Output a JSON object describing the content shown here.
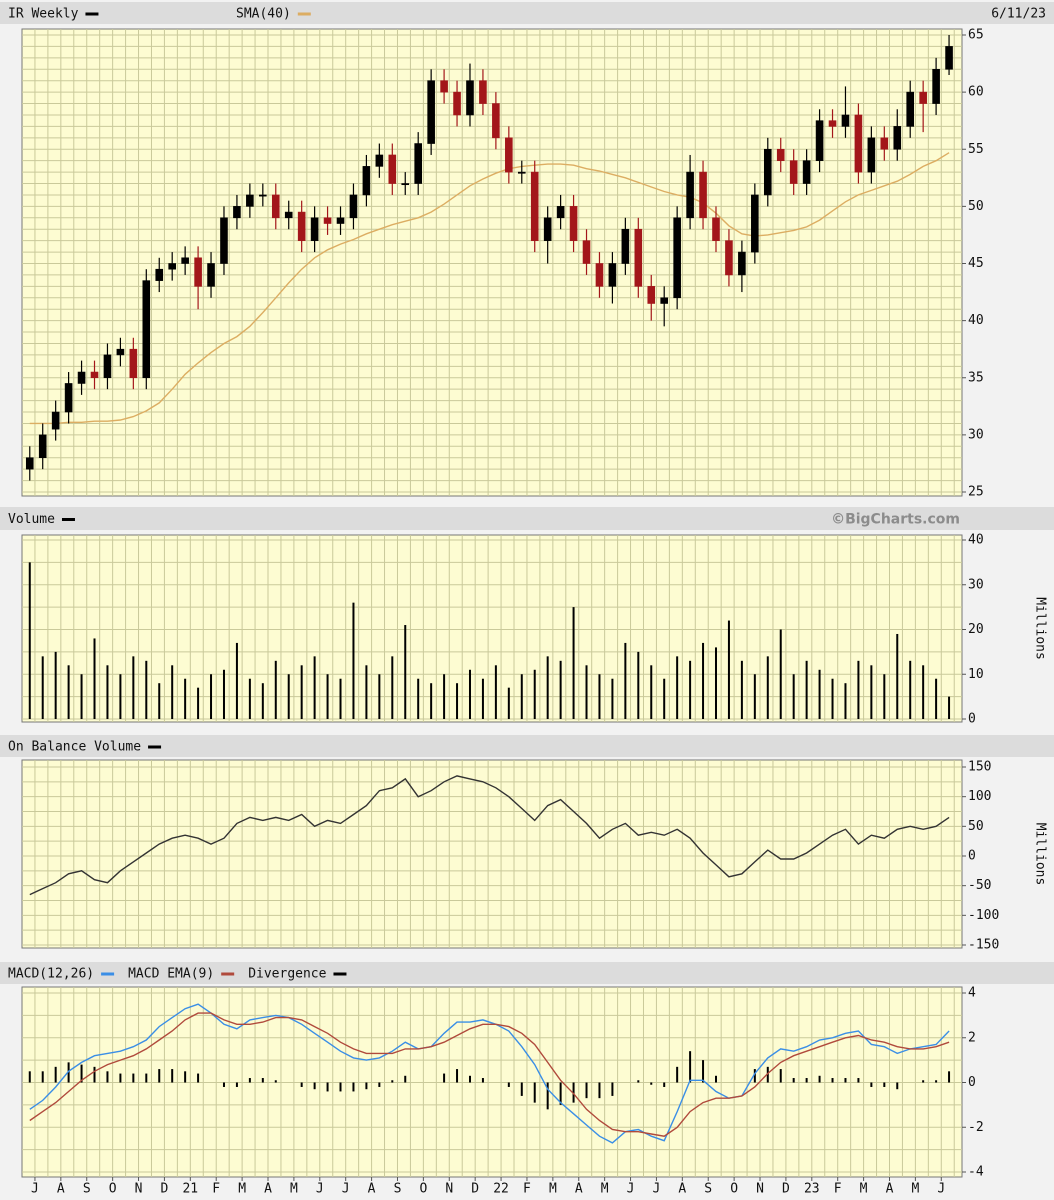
{
  "chart_data": [
    {
      "type": "candlestick",
      "title": "IR Weekly",
      "date": "6/11/23",
      "up_color": "#000000",
      "down_color": "#a3161a",
      "x": [
        0.3,
        0.8,
        1.3,
        1.8,
        2.3,
        2.8,
        3.3,
        3.8,
        4.3,
        4.8,
        5.3,
        5.8,
        6.3,
        6.8,
        7.3,
        7.8,
        8.3,
        8.8,
        9.3,
        9.8,
        10.3,
        10.8,
        11.3,
        11.8,
        12.3,
        12.8,
        13.3,
        13.8,
        14.3,
        14.8,
        15.3,
        15.8,
        16.3,
        16.8,
        17.3,
        17.8,
        18.3,
        18.8,
        19.3,
        19.8,
        20.3,
        20.8,
        21.3,
        21.8,
        22.3,
        22.8,
        23.3,
        23.8,
        24.3,
        24.8,
        25.3,
        25.8,
        26.3,
        26.8,
        27.3,
        27.8,
        28.3,
        28.8,
        29.3,
        29.8,
        30.3,
        30.8,
        31.3,
        31.8,
        32.3,
        32.8,
        33.3,
        33.8,
        34.3,
        34.8,
        35.3,
        35.8
      ],
      "open": [
        27,
        28,
        30.5,
        32,
        34.5,
        35.5,
        35,
        37,
        37.5,
        35,
        43.5,
        44.5,
        45,
        45.5,
        43,
        45,
        49,
        50,
        51,
        51,
        49,
        49.5,
        47,
        49,
        48.5,
        49,
        51,
        53.5,
        54.5,
        52,
        52,
        55.5,
        61,
        60,
        58,
        61,
        59,
        56,
        53,
        53,
        47,
        49,
        50,
        47,
        45,
        43,
        45,
        48,
        43,
        41.5,
        42,
        49,
        53,
        49,
        47,
        44,
        46,
        51,
        55,
        54,
        52,
        54,
        57.5,
        57,
        58,
        53,
        56,
        55,
        57,
        60,
        59,
        62
      ],
      "high": [
        29,
        31,
        33,
        35.5,
        36.5,
        36.5,
        38,
        38.5,
        38.5,
        44.5,
        45.5,
        46,
        46.5,
        46.5,
        46,
        50,
        51,
        52,
        52,
        52,
        50.5,
        50.5,
        50,
        50,
        50,
        52,
        54.5,
        55.5,
        55.5,
        53,
        56.5,
        62,
        62,
        61,
        62.5,
        62,
        60,
        57,
        54,
        54,
        50,
        51,
        51,
        48,
        46,
        46,
        49,
        49,
        44,
        43,
        50,
        54.5,
        54,
        50,
        48,
        47,
        52,
        56,
        56,
        55,
        55,
        58.5,
        58.5,
        60.5,
        59,
        57,
        57,
        58.5,
        61,
        61,
        63,
        65
      ],
      "low": [
        26,
        27,
        29.5,
        31,
        33.5,
        34,
        34,
        36,
        34,
        34,
        42.5,
        43.5,
        44,
        41,
        42,
        44,
        48,
        49,
        50,
        48,
        48,
        46,
        46,
        47.5,
        47.5,
        48,
        50,
        52.5,
        51,
        51,
        51,
        54.5,
        59,
        57,
        57,
        58,
        55,
        52,
        52,
        46,
        45,
        48,
        46,
        44,
        42,
        41.5,
        44,
        42,
        40,
        39.5,
        41,
        48,
        48,
        46,
        43,
        42.5,
        45,
        50,
        53,
        51,
        51,
        53,
        56,
        56,
        52,
        52,
        54,
        54,
        56,
        56.5,
        58,
        61.5
      ],
      "close": [
        28,
        30,
        32,
        34.5,
        35.5,
        35,
        37,
        37.5,
        35,
        43.5,
        44.5,
        45,
        45.5,
        43,
        45,
        49,
        50,
        51,
        51,
        49,
        49.5,
        47,
        49,
        48.5,
        49,
        51,
        53.5,
        54.5,
        52,
        52,
        55.5,
        61,
        60,
        58,
        61,
        59,
        56,
        53,
        53,
        47,
        49,
        50,
        47,
        45,
        43,
        45,
        48,
        43,
        41.5,
        42,
        49,
        53,
        49,
        47,
        44,
        46,
        51,
        55,
        54,
        52,
        54,
        57.5,
        57,
        58,
        53,
        56,
        55,
        57,
        60,
        59,
        62,
        64
      ],
      "series": [
        {
          "name": "SMA(40)",
          "color": "#dcad62",
          "values": [
            31,
            31,
            31,
            31.1,
            31.1,
            31.2,
            31.2,
            31.3,
            31.6,
            32.1,
            32.8,
            34,
            35.3,
            36.3,
            37.2,
            38,
            38.6,
            39.5,
            40.7,
            42,
            43.3,
            44.5,
            45.5,
            46.2,
            46.7,
            47.1,
            47.6,
            48,
            48.4,
            48.7,
            49,
            49.5,
            50.2,
            51,
            51.8,
            52.4,
            52.9,
            53.3,
            53.5,
            53.6,
            53.7,
            53.7,
            53.6,
            53.3,
            53.1,
            52.8,
            52.5,
            52.1,
            51.7,
            51.3,
            51,
            50.8,
            50.3,
            49.4,
            48.3,
            47.6,
            47.4,
            47.5,
            47.7,
            47.9,
            48.2,
            48.8,
            49.6,
            50.4,
            51,
            51.4,
            51.8,
            52.2,
            52.8,
            53.5,
            54,
            54.7
          ]
        }
      ],
      "xlim": [
        0,
        36.3
      ],
      "ylim": [
        25,
        65
      ],
      "yticks": [
        25,
        30,
        35,
        40,
        45,
        50,
        55,
        60,
        65
      ],
      "grid": true
    },
    {
      "type": "bar",
      "title": "Volume",
      "source": "©BigCharts.com",
      "y_label": "Millions",
      "color": "#000000",
      "x": [
        0.3,
        0.8,
        1.3,
        1.8,
        2.3,
        2.8,
        3.3,
        3.8,
        4.3,
        4.8,
        5.3,
        5.8,
        6.3,
        6.8,
        7.3,
        7.8,
        8.3,
        8.8,
        9.3,
        9.8,
        10.3,
        10.8,
        11.3,
        11.8,
        12.3,
        12.8,
        13.3,
        13.8,
        14.3,
        14.8,
        15.3,
        15.8,
        16.3,
        16.8,
        17.3,
        17.8,
        18.3,
        18.8,
        19.3,
        19.8,
        20.3,
        20.8,
        21.3,
        21.8,
        22.3,
        22.8,
        23.3,
        23.8,
        24.3,
        24.8,
        25.3,
        25.8,
        26.3,
        26.8,
        27.3,
        27.8,
        28.3,
        28.8,
        29.3,
        29.8,
        30.3,
        30.8,
        31.3,
        31.8,
        32.3,
        32.8,
        33.3,
        33.8,
        34.3,
        34.8,
        35.3,
        35.8
      ],
      "values": [
        35,
        14,
        15,
        12,
        10,
        18,
        12,
        10,
        14,
        13,
        8,
        12,
        9,
        7,
        10,
        11,
        17,
        9,
        8,
        13,
        10,
        12,
        14,
        10,
        9,
        26,
        12,
        10,
        14,
        21,
        9,
        8,
        10,
        8,
        11,
        9,
        12,
        7,
        10,
        11,
        14,
        13,
        25,
        12,
        10,
        9,
        17,
        15,
        12,
        9,
        14,
        13,
        17,
        16,
        22,
        13,
        10,
        14,
        20,
        10,
        13,
        11,
        9,
        8,
        13,
        12,
        10,
        19,
        13,
        12,
        9,
        5
      ],
      "xlim": [
        0,
        36.3
      ],
      "ylim": [
        0,
        40
      ],
      "yticks": [
        0,
        10,
        20,
        30,
        40
      ],
      "grid": true
    },
    {
      "type": "line",
      "title": "On Balance Volume",
      "y_label": "Millions",
      "color": "#333333",
      "x": [
        0.3,
        0.8,
        1.3,
        1.8,
        2.3,
        2.8,
        3.3,
        3.8,
        4.3,
        4.8,
        5.3,
        5.8,
        6.3,
        6.8,
        7.3,
        7.8,
        8.3,
        8.8,
        9.3,
        9.8,
        10.3,
        10.8,
        11.3,
        11.8,
        12.3,
        12.8,
        13.3,
        13.8,
        14.3,
        14.8,
        15.3,
        15.8,
        16.3,
        16.8,
        17.3,
        17.8,
        18.3,
        18.8,
        19.3,
        19.8,
        20.3,
        20.8,
        21.3,
        21.8,
        22.3,
        22.8,
        23.3,
        23.8,
        24.3,
        24.8,
        25.3,
        25.8,
        26.3,
        26.8,
        27.3,
        27.8,
        28.3,
        28.8,
        29.3,
        29.8,
        30.3,
        30.8,
        31.3,
        31.8,
        32.3,
        32.8,
        33.3,
        33.8,
        34.3,
        34.8,
        35.3,
        35.8
      ],
      "values": [
        -65,
        -55,
        -45,
        -30,
        -25,
        -40,
        -45,
        -25,
        -10,
        5,
        20,
        30,
        35,
        30,
        20,
        30,
        55,
        65,
        60,
        65,
        60,
        70,
        50,
        60,
        55,
        70,
        85,
        110,
        115,
        130,
        100,
        110,
        125,
        135,
        130,
        125,
        115,
        100,
        80,
        60,
        85,
        95,
        75,
        55,
        30,
        45,
        55,
        35,
        40,
        35,
        45,
        30,
        5,
        -15,
        -35,
        -30,
        -10,
        10,
        -5,
        -5,
        5,
        20,
        35,
        45,
        20,
        35,
        30,
        45,
        50,
        45,
        50,
        65
      ],
      "xlim": [
        0,
        36.3
      ],
      "ylim": [
        -150,
        150
      ],
      "yticks": [
        -150,
        -100,
        -50,
        0,
        50,
        100,
        150
      ],
      "grid": true
    },
    {
      "type": "macd",
      "x": [
        0.3,
        0.8,
        1.3,
        1.8,
        2.3,
        2.8,
        3.3,
        3.8,
        4.3,
        4.8,
        5.3,
        5.8,
        6.3,
        6.8,
        7.3,
        7.8,
        8.3,
        8.8,
        9.3,
        9.8,
        10.3,
        10.8,
        11.3,
        11.8,
        12.3,
        12.8,
        13.3,
        13.8,
        14.3,
        14.8,
        15.3,
        15.8,
        16.3,
        16.8,
        17.3,
        17.8,
        18.3,
        18.8,
        19.3,
        19.8,
        20.3,
        20.8,
        21.3,
        21.8,
        22.3,
        22.8,
        23.3,
        23.8,
        24.3,
        24.8,
        25.3,
        25.8,
        26.3,
        26.8,
        27.3,
        27.8,
        28.3,
        28.8,
        29.3,
        29.8,
        30.3,
        30.8,
        31.3,
        31.8,
        32.3,
        32.8,
        33.3,
        33.8,
        34.3,
        34.8,
        35.3,
        35.8
      ],
      "series": [
        {
          "name": "MACD(12,26)",
          "color": "#3a8ee6",
          "type": "line",
          "values": [
            -1.2,
            -0.8,
            -0.2,
            0.5,
            0.9,
            1.2,
            1.3,
            1.4,
            1.6,
            1.9,
            2.5,
            2.9,
            3.3,
            3.5,
            3.1,
            2.6,
            2.4,
            2.8,
            2.9,
            3.0,
            2.9,
            2.6,
            2.2,
            1.8,
            1.4,
            1.1,
            1.0,
            1.1,
            1.4,
            1.8,
            1.5,
            1.6,
            2.2,
            2.7,
            2.7,
            2.8,
            2.6,
            2.3,
            1.6,
            0.8,
            -0.3,
            -0.9,
            -1.4,
            -1.9,
            -2.4,
            -2.7,
            -2.2,
            -2.1,
            -2.4,
            -2.6,
            -1.3,
            0.1,
            0.1,
            -0.4,
            -0.7,
            -0.6,
            0.4,
            1.1,
            1.5,
            1.4,
            1.6,
            1.9,
            2.0,
            2.2,
            2.3,
            1.7,
            1.6,
            1.3,
            1.5,
            1.6,
            1.7,
            2.3
          ]
        },
        {
          "name": "MACD EMA(9)",
          "color": "#b04a3c",
          "type": "line",
          "values": [
            -1.7,
            -1.3,
            -0.9,
            -0.4,
            0.1,
            0.5,
            0.8,
            1.0,
            1.2,
            1.5,
            1.9,
            2.3,
            2.8,
            3.1,
            3.1,
            2.8,
            2.6,
            2.6,
            2.7,
            2.9,
            2.9,
            2.8,
            2.5,
            2.2,
            1.8,
            1.5,
            1.3,
            1.3,
            1.3,
            1.5,
            1.5,
            1.6,
            1.8,
            2.1,
            2.4,
            2.6,
            2.6,
            2.5,
            2.2,
            1.7,
            0.9,
            0.1,
            -0.5,
            -1.2,
            -1.7,
            -2.1,
            -2.2,
            -2.2,
            -2.3,
            -2.4,
            -2.0,
            -1.3,
            -0.9,
            -0.7,
            -0.7,
            -0.6,
            -0.2,
            0.4,
            0.9,
            1.2,
            1.4,
            1.6,
            1.8,
            2.0,
            2.1,
            1.9,
            1.8,
            1.6,
            1.5,
            1.5,
            1.6,
            1.8
          ]
        },
        {
          "name": "Divergence",
          "color": "#000000",
          "type": "bar",
          "values": [
            0.5,
            0.5,
            0.7,
            0.9,
            0.8,
            0.7,
            0.5,
            0.4,
            0.4,
            0.4,
            0.6,
            0.6,
            0.5,
            0.4,
            0,
            -0.2,
            -0.2,
            0.2,
            0.2,
            0.1,
            0,
            -0.2,
            -0.3,
            -0.4,
            -0.4,
            -0.4,
            -0.3,
            -0.2,
            0.1,
            0.3,
            0,
            0,
            0.4,
            0.6,
            0.3,
            0.2,
            0,
            -0.2,
            -0.6,
            -0.9,
            -1.2,
            -1.0,
            -0.9,
            -0.7,
            -0.7,
            -0.6,
            0,
            0.1,
            -0.1,
            -0.2,
            0.7,
            1.4,
            1.0,
            0.3,
            0,
            0,
            0.6,
            0.7,
            0.6,
            0.2,
            0.2,
            0.3,
            0.2,
            0.2,
            0.2,
            -0.2,
            -0.2,
            -0.3,
            0,
            0.1,
            0.1,
            0.5
          ]
        }
      ],
      "xlim": [
        0,
        36.3
      ],
      "xticks": [
        {
          "value": 0.5,
          "label": "J"
        },
        {
          "value": 1.5,
          "label": "A"
        },
        {
          "value": 2.5,
          "label": "S"
        },
        {
          "value": 3.5,
          "label": "O"
        },
        {
          "value": 4.5,
          "label": "N"
        },
        {
          "value": 5.5,
          "label": "D"
        },
        {
          "value": 6.5,
          "label": "21"
        },
        {
          "value": 7.5,
          "label": "F"
        },
        {
          "value": 8.5,
          "label": "M"
        },
        {
          "value": 9.5,
          "label": "A"
        },
        {
          "value": 10.5,
          "label": "M"
        },
        {
          "value": 11.5,
          "label": "J"
        },
        {
          "value": 12.5,
          "label": "J"
        },
        {
          "value": 13.5,
          "label": "A"
        },
        {
          "value": 14.5,
          "label": "S"
        },
        {
          "value": 15.5,
          "label": "O"
        },
        {
          "value": 16.5,
          "label": "N"
        },
        {
          "value": 17.5,
          "label": "D"
        },
        {
          "value": 18.5,
          "label": "22"
        },
        {
          "value": 19.5,
          "label": "F"
        },
        {
          "value": 20.5,
          "label": "M"
        },
        {
          "value": 21.5,
          "label": "A"
        },
        {
          "value": 22.5,
          "label": "M"
        },
        {
          "value": 23.5,
          "label": "J"
        },
        {
          "value": 24.5,
          "label": "J"
        },
        {
          "value": 25.5,
          "label": "A"
        },
        {
          "value": 26.5,
          "label": "S"
        },
        {
          "value": 27.5,
          "label": "O"
        },
        {
          "value": 28.5,
          "label": "N"
        },
        {
          "value": 29.5,
          "label": "D"
        },
        {
          "value": 30.5,
          "label": "23"
        },
        {
          "value": 31.5,
          "label": "F"
        },
        {
          "value": 32.5,
          "label": "M"
        },
        {
          "value": 33.5,
          "label": "A"
        },
        {
          "value": 34.5,
          "label": "M"
        },
        {
          "value": 35.5,
          "label": "J"
        }
      ],
      "ylim": [
        -4,
        4
      ],
      "yticks": [
        -4,
        -2,
        0,
        2,
        4
      ],
      "grid": true
    }
  ]
}
